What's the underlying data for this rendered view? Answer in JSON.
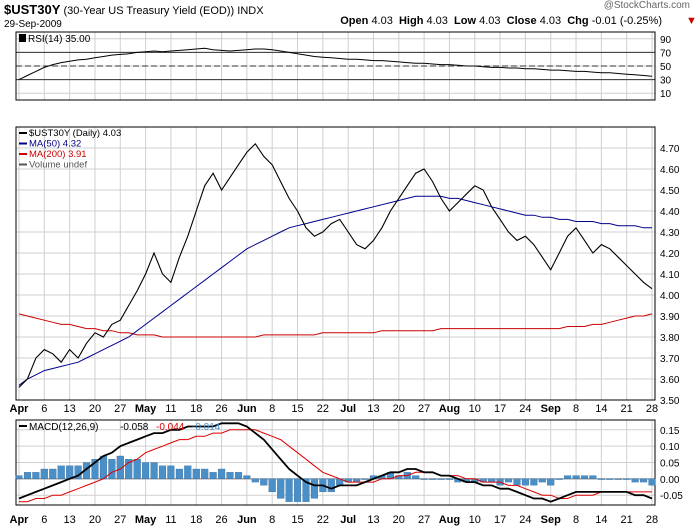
{
  "header": {
    "symbol": "$UST30Y",
    "description": "(30-Year US Treasury Yield (EOD))",
    "exchange": "INDX",
    "date": "29-Sep-2009",
    "ohlc": [
      {
        "label": "Open",
        "value": "4.03"
      },
      {
        "label": "High",
        "value": "4.03"
      },
      {
        "label": "Low",
        "value": "4.03"
      },
      {
        "label": "Close",
        "value": "4.03"
      }
    ],
    "chg_label": "Chg",
    "chg_value": "-0.01 (-0.25%)",
    "watermark": "@StockCharts.com"
  },
  "colors": {
    "price": "#000000",
    "ma50": "#00008b",
    "ma200": "#cc0000",
    "macd": "#000000",
    "signal": "#dd0000",
    "histogram": "#4a90c8",
    "chg": "#cc0000"
  },
  "chart_data": [
    {
      "type": "line",
      "title": "RSI(14) 35.00",
      "ylim": [
        0,
        100
      ],
      "ticks": [
        10,
        30,
        50,
        70,
        90
      ],
      "reference_lines": [
        30,
        50,
        70
      ],
      "series": [
        {
          "name": "RSI(14)",
          "values": [
            30,
            36,
            42,
            48,
            52,
            55,
            57,
            59,
            60,
            62,
            64,
            66,
            67,
            68,
            70,
            71,
            72,
            71,
            72,
            73,
            74,
            75,
            76,
            74,
            73,
            72,
            73,
            74,
            75,
            75,
            74,
            72,
            70,
            68,
            66,
            64,
            63,
            62,
            61,
            60,
            60,
            59,
            58,
            58,
            57,
            56,
            55,
            54,
            54,
            53,
            52,
            52,
            51,
            50,
            50,
            49,
            48,
            48,
            47,
            47,
            46,
            46,
            45,
            44,
            44,
            43,
            42,
            42,
            41,
            40,
            40,
            39,
            38,
            37,
            36,
            35
          ]
        }
      ]
    },
    {
      "type": "line",
      "legend": [
        "$UST30Y (Daily) 4.03",
        "MA(50) 4.32",
        "MA(200) 3.91",
        "Volume undef"
      ],
      "ylim": [
        3.5,
        4.8
      ],
      "ticks": [
        "3.50",
        "3.60",
        "3.70",
        "3.80",
        "3.90",
        "4.00",
        "4.10",
        "4.20",
        "4.30",
        "4.40",
        "4.50",
        "4.60",
        "4.70"
      ],
      "x_labels": [
        "Apr",
        "6",
        "13",
        "20",
        "27",
        "May",
        "11",
        "18",
        "26",
        "Jun",
        "8",
        "15",
        "22",
        "Jul",
        "13",
        "20",
        "27",
        "Aug",
        "10",
        "17",
        "24",
        "Sep",
        "8",
        "14",
        "21",
        "28"
      ],
      "series": [
        {
          "name": "$UST30Y",
          "values": [
            3.56,
            3.6,
            3.7,
            3.74,
            3.72,
            3.68,
            3.74,
            3.7,
            3.77,
            3.82,
            3.8,
            3.86,
            3.88,
            3.95,
            4.02,
            4.1,
            4.2,
            4.1,
            4.06,
            4.18,
            4.28,
            4.4,
            4.52,
            4.58,
            4.5,
            4.56,
            4.62,
            4.68,
            4.72,
            4.66,
            4.62,
            4.54,
            4.46,
            4.4,
            4.32,
            4.28,
            4.3,
            4.34,
            4.36,
            4.3,
            4.24,
            4.22,
            4.26,
            4.32,
            4.4,
            4.46,
            4.52,
            4.58,
            4.6,
            4.54,
            4.46,
            4.4,
            4.44,
            4.48,
            4.52,
            4.5,
            4.42,
            4.36,
            4.3,
            4.26,
            4.28,
            4.24,
            4.18,
            4.12,
            4.2,
            4.28,
            4.32,
            4.26,
            4.2,
            4.24,
            4.22,
            4.18,
            4.14,
            4.1,
            4.06,
            4.03
          ]
        },
        {
          "name": "MA(50)",
          "values": [
            3.57,
            3.6,
            3.62,
            3.64,
            3.65,
            3.66,
            3.67,
            3.68,
            3.7,
            3.72,
            3.74,
            3.76,
            3.78,
            3.8,
            3.83,
            3.86,
            3.89,
            3.92,
            3.95,
            3.98,
            4.01,
            4.04,
            4.07,
            4.1,
            4.13,
            4.16,
            4.19,
            4.22,
            4.24,
            4.26,
            4.28,
            4.3,
            4.32,
            4.33,
            4.34,
            4.35,
            4.36,
            4.37,
            4.38,
            4.39,
            4.4,
            4.41,
            4.42,
            4.43,
            4.44,
            4.45,
            4.46,
            4.47,
            4.47,
            4.47,
            4.47,
            4.46,
            4.46,
            4.45,
            4.44,
            4.43,
            4.42,
            4.41,
            4.4,
            4.39,
            4.38,
            4.38,
            4.37,
            4.37,
            4.36,
            4.36,
            4.35,
            4.35,
            4.35,
            4.34,
            4.34,
            4.33,
            4.33,
            4.33,
            4.32,
            4.32
          ]
        },
        {
          "name": "MA(200)",
          "values": [
            3.91,
            3.9,
            3.89,
            3.88,
            3.87,
            3.86,
            3.86,
            3.85,
            3.84,
            3.84,
            3.83,
            3.83,
            3.82,
            3.82,
            3.81,
            3.81,
            3.81,
            3.8,
            3.8,
            3.8,
            3.8,
            3.8,
            3.8,
            3.8,
            3.8,
            3.8,
            3.8,
            3.8,
            3.8,
            3.81,
            3.81,
            3.81,
            3.81,
            3.81,
            3.81,
            3.81,
            3.82,
            3.82,
            3.82,
            3.82,
            3.82,
            3.82,
            3.82,
            3.83,
            3.83,
            3.83,
            3.83,
            3.83,
            3.83,
            3.83,
            3.84,
            3.84,
            3.84,
            3.84,
            3.84,
            3.84,
            3.84,
            3.84,
            3.84,
            3.84,
            3.84,
            3.84,
            3.84,
            3.84,
            3.84,
            3.85,
            3.85,
            3.85,
            3.86,
            3.86,
            3.87,
            3.88,
            3.89,
            3.9,
            3.9,
            3.91
          ]
        }
      ]
    },
    {
      "type": "line",
      "title": "MACD(12,26,9)",
      "legend": [
        "-0.058",
        "-0.044",
        "-0.014"
      ],
      "ylim": [
        -0.08,
        0.18
      ],
      "ticks": [
        "0.15",
        "0.10",
        "0.05",
        "0.00",
        "-0.05"
      ],
      "series": [
        {
          "name": "MACD",
          "values": [
            -0.06,
            -0.05,
            -0.04,
            -0.03,
            -0.02,
            -0.01,
            0.0,
            0.01,
            0.03,
            0.05,
            0.07,
            0.08,
            0.1,
            0.11,
            0.12,
            0.13,
            0.14,
            0.14,
            0.15,
            0.15,
            0.16,
            0.16,
            0.16,
            0.16,
            0.17,
            0.17,
            0.17,
            0.16,
            0.14,
            0.12,
            0.09,
            0.06,
            0.03,
            0.01,
            -0.01,
            -0.02,
            -0.02,
            -0.03,
            -0.02,
            -0.02,
            -0.02,
            -0.01,
            0.0,
            0.01,
            0.02,
            0.02,
            0.03,
            0.03,
            0.02,
            0.02,
            0.01,
            0.01,
            0.0,
            -0.01,
            -0.01,
            -0.02,
            -0.02,
            -0.03,
            -0.03,
            -0.04,
            -0.05,
            -0.06,
            -0.06,
            -0.07,
            -0.06,
            -0.05,
            -0.04,
            -0.04,
            -0.04,
            -0.04,
            -0.04,
            -0.04,
            -0.04,
            -0.05,
            -0.05,
            -0.06
          ]
        },
        {
          "name": "Signal",
          "values": [
            -0.07,
            -0.07,
            -0.06,
            -0.06,
            -0.05,
            -0.05,
            -0.04,
            -0.03,
            -0.02,
            -0.01,
            0.0,
            0.02,
            0.03,
            0.05,
            0.06,
            0.08,
            0.09,
            0.1,
            0.11,
            0.12,
            0.12,
            0.13,
            0.13,
            0.14,
            0.14,
            0.15,
            0.15,
            0.15,
            0.15,
            0.14,
            0.13,
            0.12,
            0.1,
            0.08,
            0.06,
            0.04,
            0.02,
            0.01,
            0.0,
            -0.01,
            -0.01,
            -0.01,
            -0.01,
            0.0,
            0.0,
            0.01,
            0.01,
            0.02,
            0.02,
            0.02,
            0.01,
            0.01,
            0.01,
            0.0,
            0.0,
            -0.01,
            -0.01,
            -0.01,
            -0.02,
            -0.02,
            -0.03,
            -0.04,
            -0.05,
            -0.05,
            -0.06,
            -0.06,
            -0.05,
            -0.05,
            -0.05,
            -0.04,
            -0.04,
            -0.04,
            -0.04,
            -0.04,
            -0.04,
            -0.04
          ]
        }
      ]
    }
  ]
}
